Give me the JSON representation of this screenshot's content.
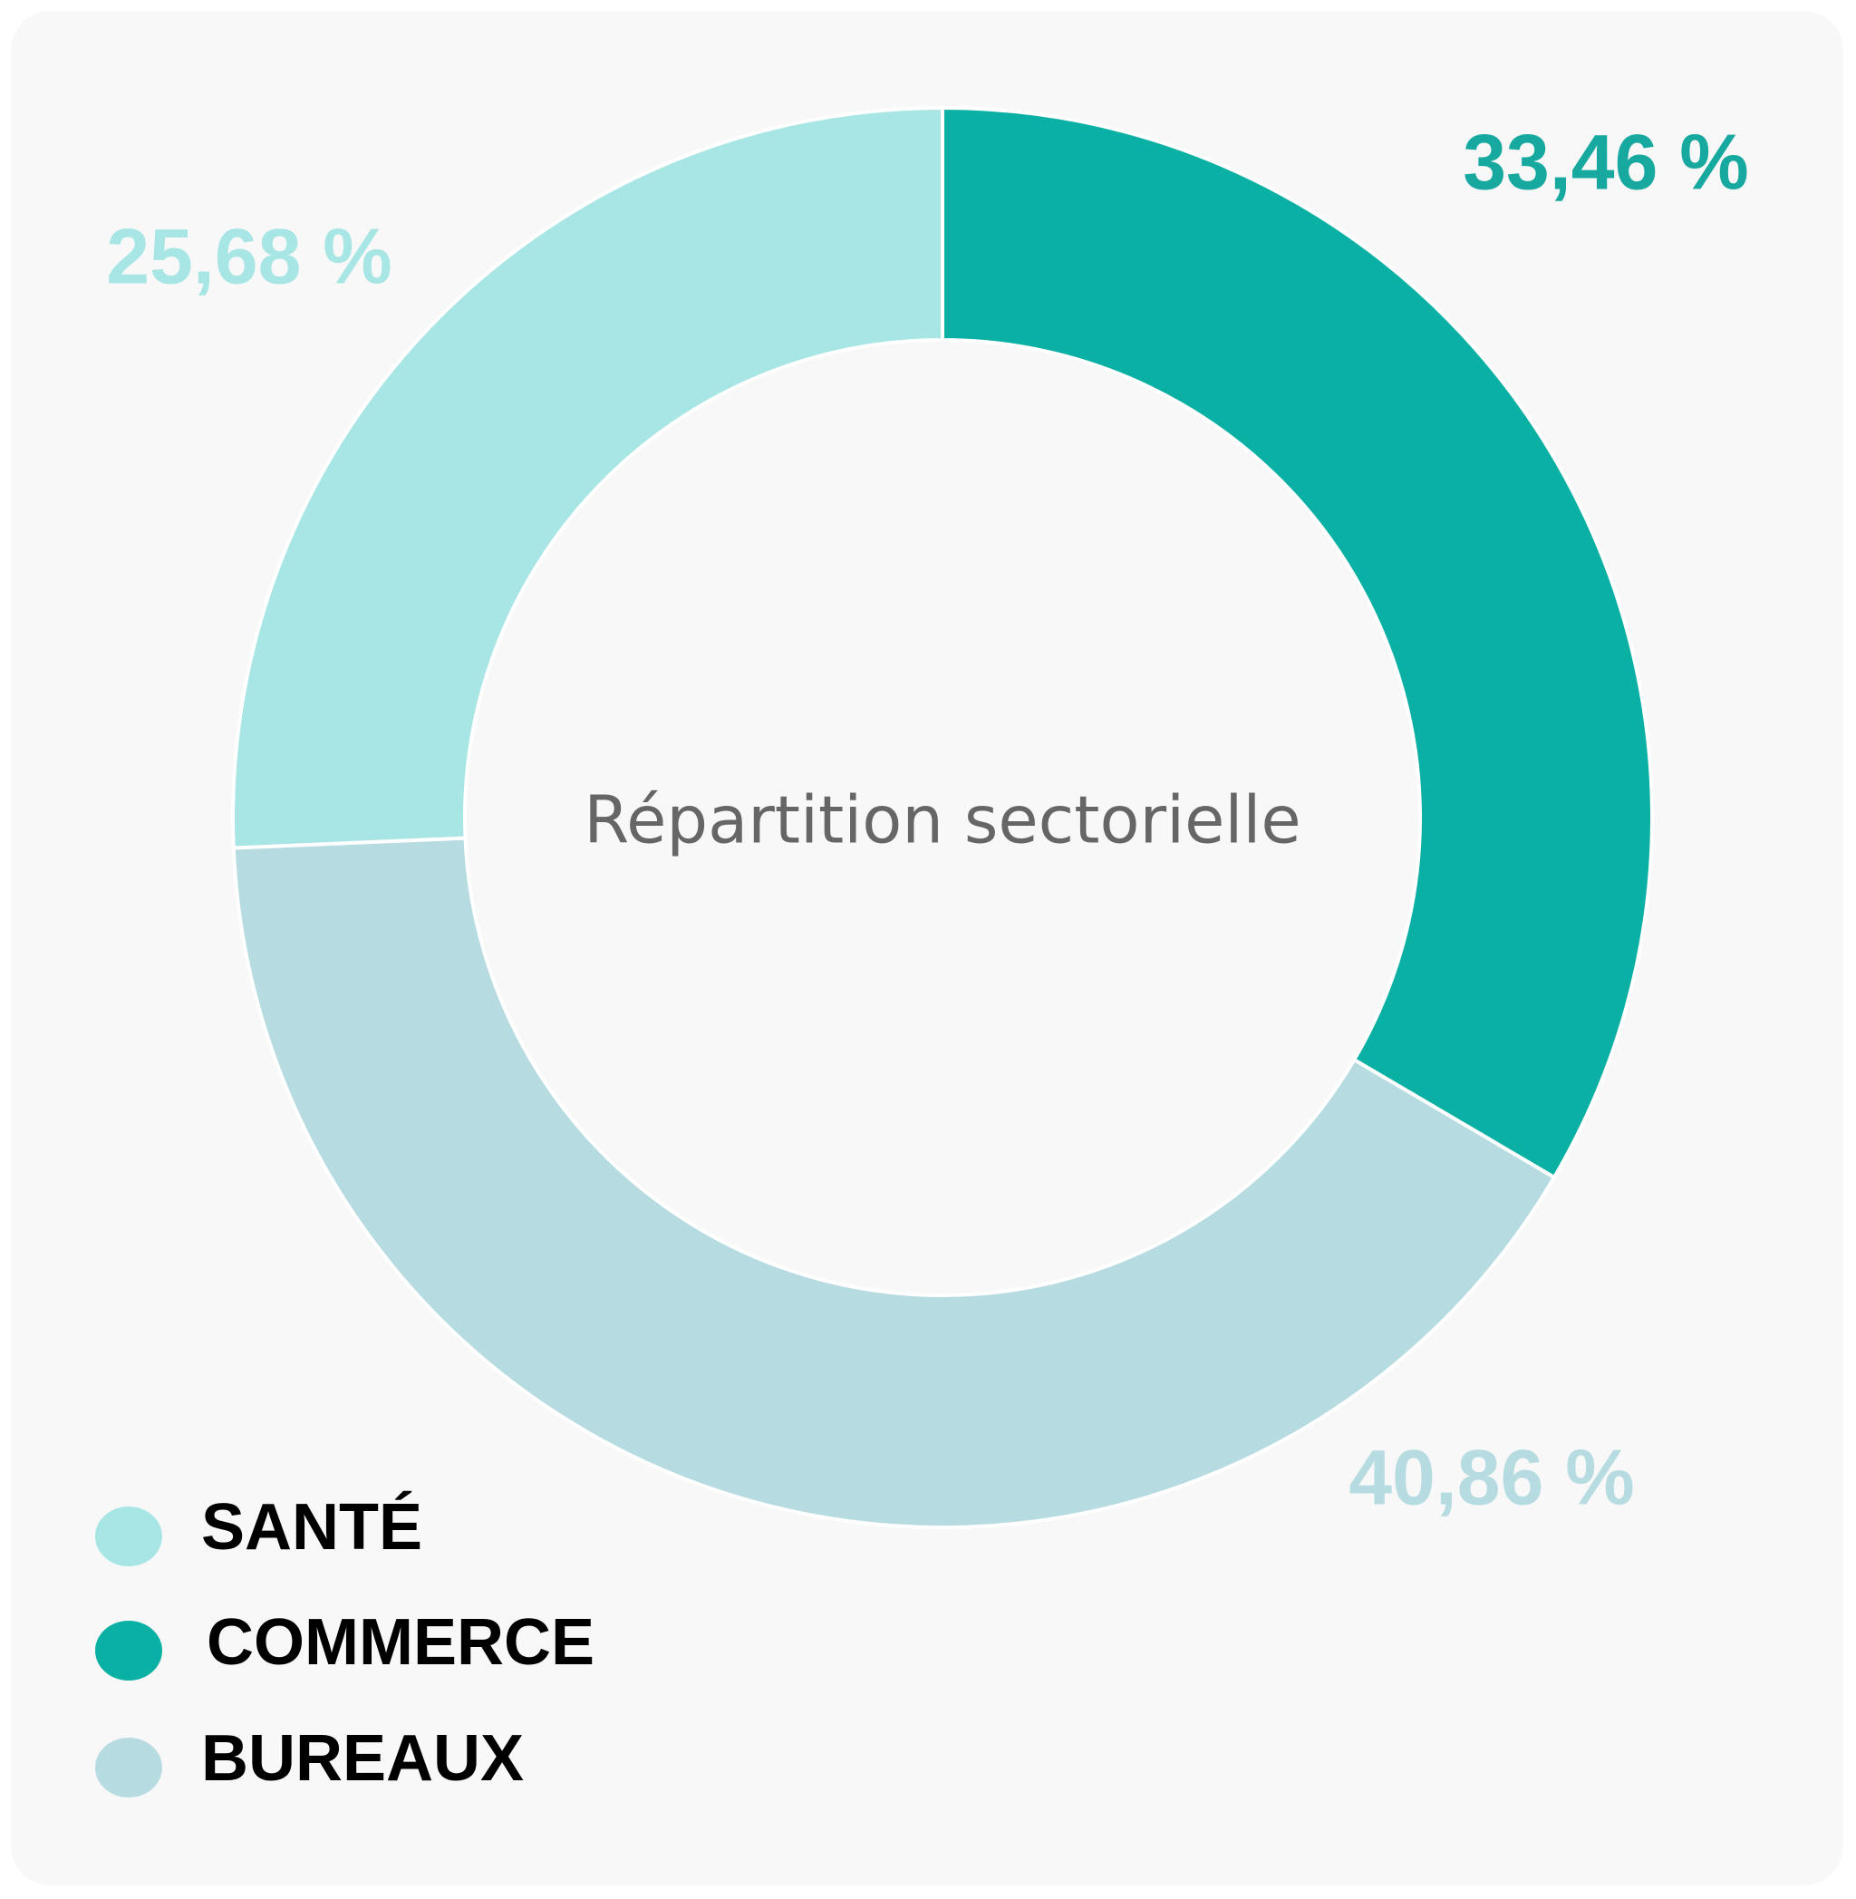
{
  "chart_data": {
    "type": "pie",
    "donut": true,
    "center_text": "Répartition sectorielle",
    "slices": [
      {
        "name": "COMMERCE",
        "value": 33.46,
        "label": "33,46 %",
        "color": "#09b0a3",
        "label_color": "#17a89f"
      },
      {
        "name": "BUREAUX",
        "value": 40.86,
        "label": "40,86 %",
        "color": "#b6dce1",
        "label_color": "#b6dce1"
      },
      {
        "name": "SANTÉ",
        "value": 25.68,
        "label": "25,68 %",
        "color": "#a8e5e5",
        "label_color": "#a8e5e5"
      }
    ],
    "legend": {
      "placement": "bottom-left",
      "items": [
        {
          "label": "SANTÉ",
          "color": "#a8e5e5"
        },
        {
          "label": "COMMERCE",
          "color": "#09b0a3"
        },
        {
          "label": "BUREAUX",
          "color": "#b6dce1"
        }
      ]
    }
  }
}
